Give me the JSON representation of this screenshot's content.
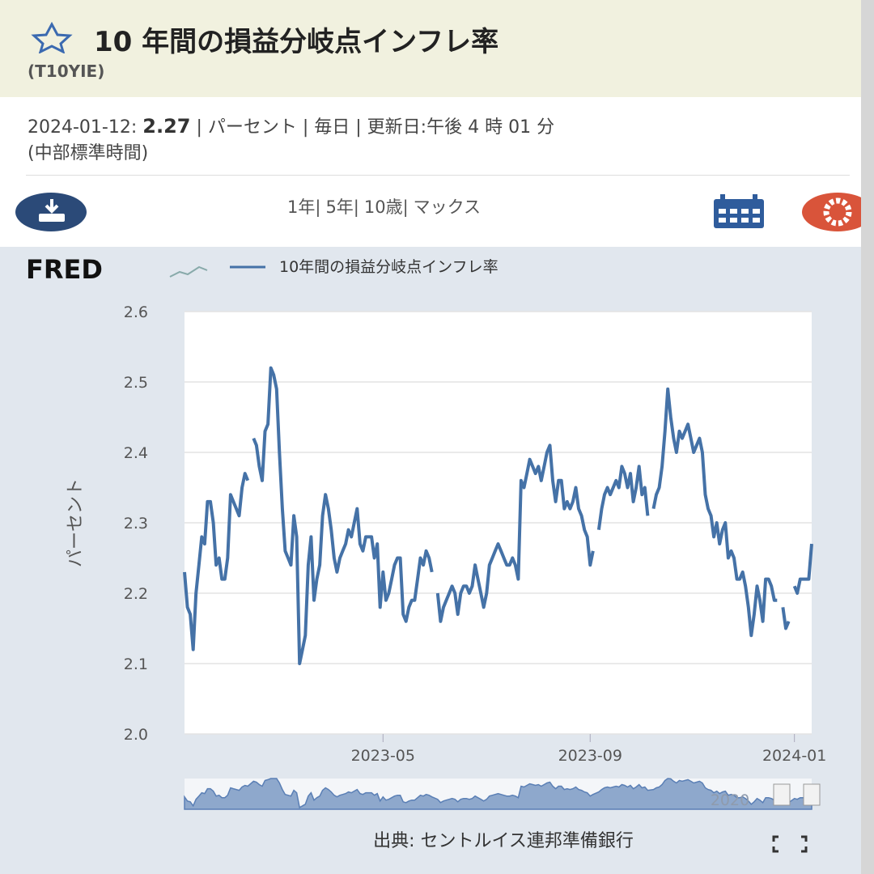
{
  "header": {
    "title": "10 年間の損益分岐点インフレ率",
    "series_id": "(T10YIE)"
  },
  "info": {
    "date": "2024-01-12:",
    "value": "2.27",
    "details": "| パーセント | 毎日 | 更新日:午後 4 時 01 分",
    "timezone": "(中部標準時間)"
  },
  "ranges": [
    "1年|",
    "5年|",
    "10歳|",
    "マックス"
  ],
  "brand": "FRED",
  "source": "出典: セントルイス連邦準備銀行",
  "chart_data": {
    "type": "line",
    "y_label": "パーセント",
    "grid": true,
    "navigator_label": "2020",
    "xlim": [
      0,
      218
    ],
    "xticks": [
      {
        "value": 69,
        "label": "2023-05"
      },
      {
        "value": 141,
        "label": "2023-09"
      },
      {
        "value": 212,
        "label": "2024-01"
      }
    ],
    "ylim": [
      2.0,
      2.6
    ],
    "yticks": [
      {
        "value": 2.0,
        "label": "2.0"
      },
      2.1,
      2.2,
      2.3,
      2.4,
      2.5,
      2.6
    ],
    "series": [
      {
        "name": "10年間の損益分岐点インフレ率",
        "color": "#4572a7",
        "values": [
          2.23,
          2.18,
          2.17,
          2.12,
          2.2,
          2.24,
          2.28,
          2.27,
          2.33,
          2.33,
          2.3,
          2.24,
          2.25,
          2.22,
          2.22,
          2.25,
          2.34,
          2.33,
          2.32,
          2.31,
          2.35,
          2.37,
          2.36,
          null,
          2.42,
          2.41,
          2.38,
          2.36,
          2.43,
          2.44,
          2.52,
          2.51,
          2.49,
          2.4,
          2.32,
          2.26,
          2.25,
          2.24,
          2.31,
          2.28,
          2.1,
          2.12,
          2.14,
          2.24,
          2.28,
          2.19,
          2.22,
          2.24,
          2.31,
          2.34,
          2.32,
          2.29,
          2.25,
          2.23,
          2.25,
          2.26,
          2.27,
          2.29,
          2.28,
          2.3,
          2.32,
          2.27,
          2.26,
          2.28,
          2.28,
          2.28,
          2.25,
          2.27,
          2.18,
          2.23,
          2.19,
          2.2,
          2.22,
          2.24,
          2.25,
          2.25,
          2.17,
          2.16,
          2.18,
          2.19,
          2.19,
          2.22,
          2.25,
          2.24,
          2.26,
          2.25,
          2.23,
          null,
          2.2,
          2.16,
          2.18,
          2.19,
          2.2,
          2.21,
          2.2,
          2.17,
          2.2,
          2.21,
          2.21,
          2.2,
          2.21,
          2.24,
          2.22,
          2.2,
          2.18,
          2.2,
          2.24,
          2.25,
          2.26,
          2.27,
          2.26,
          2.25,
          2.24,
          2.24,
          2.25,
          2.24,
          2.22,
          2.36,
          2.35,
          2.37,
          2.39,
          2.38,
          2.37,
          2.38,
          2.36,
          2.38,
          2.4,
          2.41,
          2.36,
          2.33,
          2.36,
          2.36,
          2.32,
          2.33,
          2.32,
          2.33,
          2.35,
          2.32,
          2.31,
          2.29,
          2.28,
          2.24,
          2.26,
          null,
          2.29,
          2.32,
          2.34,
          2.35,
          2.34,
          2.35,
          2.36,
          2.35,
          2.38,
          2.37,
          2.35,
          2.37,
          2.33,
          2.35,
          2.38,
          2.34,
          2.35,
          2.31,
          null,
          2.32,
          2.34,
          2.35,
          2.38,
          2.43,
          2.49,
          2.45,
          2.42,
          2.4,
          2.43,
          2.42,
          2.43,
          2.44,
          2.42,
          2.4,
          2.41,
          2.42,
          2.4,
          2.34,
          2.32,
          2.31,
          2.28,
          2.3,
          2.27,
          2.29,
          2.3,
          2.25,
          2.26,
          2.25,
          2.22,
          2.22,
          2.23,
          2.21,
          2.18,
          2.14,
          2.17,
          2.21,
          2.19,
          2.16,
          2.22,
          2.22,
          2.21,
          2.19,
          2.19,
          null,
          2.18,
          2.15,
          2.16,
          null,
          2.21,
          2.2,
          2.22,
          2.22,
          2.22,
          2.22,
          2.27
        ]
      }
    ]
  }
}
